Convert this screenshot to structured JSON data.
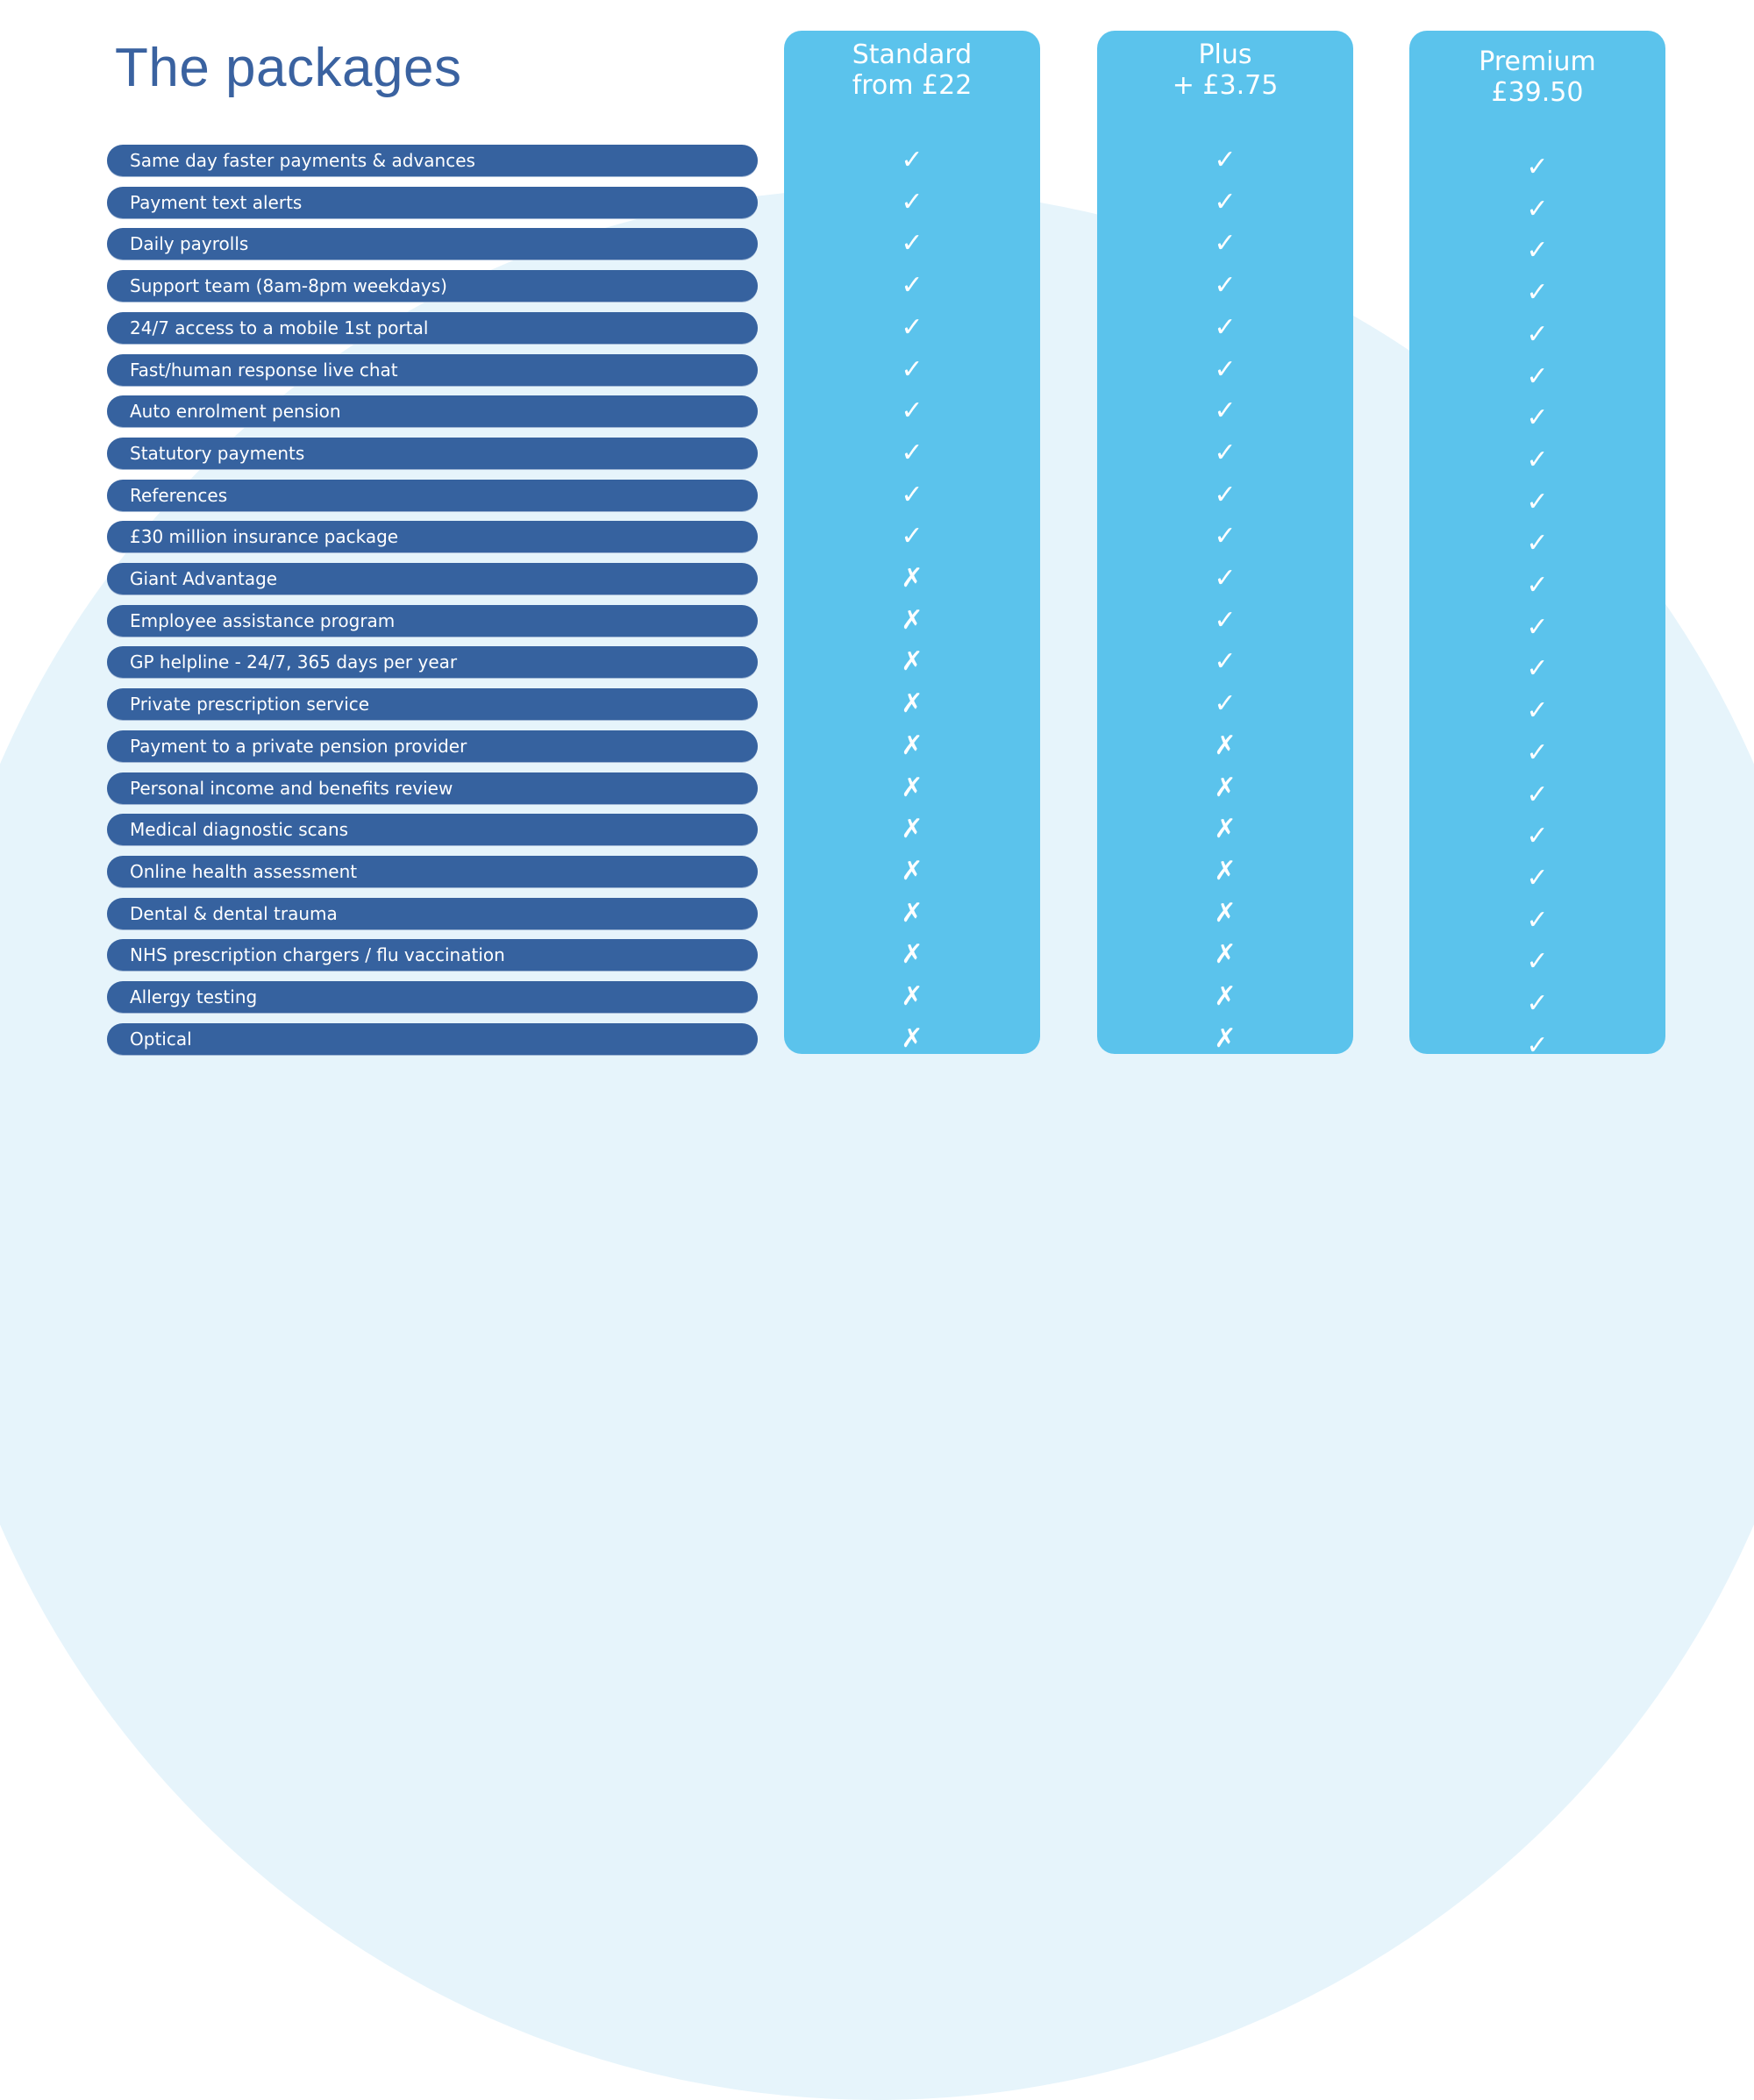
{
  "title": "The packages",
  "colors": {
    "feature_row": "#36629f",
    "package_card": "#5bc3ec",
    "title": "#3a62a0",
    "background_shape": "#e6f4fb"
  },
  "features": [
    "Same day faster payments & advances",
    "Payment text alerts",
    "Daily payrolls",
    "Support team (8am-8pm weekdays)",
    "24/7 access to a mobile 1st portal",
    "Fast/human response live chat",
    "Auto enrolment pension",
    "Statutory payments",
    "References",
    "£30 million insurance package",
    "Giant Advantage",
    "Employee assistance program",
    "GP helpline - 24/7, 365 days per year",
    "Private prescription service",
    "Payment to a private pension provider",
    "Personal income and benefits review",
    "Medical diagnostic scans",
    "Online health assessment",
    "Dental & dental trauma",
    "NHS prescription chargers / flu vaccination",
    "Allergy testing",
    "Optical"
  ],
  "packages": [
    {
      "name": "Standard",
      "price": "from £22",
      "included_count": 10
    },
    {
      "name": "Plus",
      "price": "+ £3.75",
      "included_count": 14
    },
    {
      "name": "Premium",
      "price": "£39.50",
      "included_count": 22
    }
  ],
  "icons": {
    "included": "check-icon",
    "excluded": "cross-icon"
  }
}
